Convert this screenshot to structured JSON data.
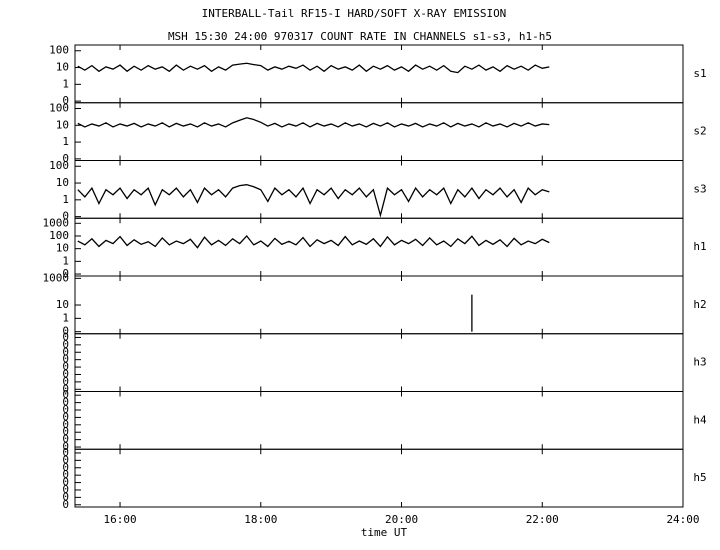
{
  "chart_data": [
    {
      "type": "line",
      "title": "INTERBALL-Tail RF15-I HARD/SOFT X-RAY EMISSION",
      "subtitle": "MSH 15:30 24:00 970317  COUNT RATE IN CHANNELS s1-s3, h1-h5",
      "name": "s1",
      "log": true,
      "ylim": [
        0.08,
        220
      ],
      "yticks": [
        100,
        10,
        1,
        {
          "value": 0.1,
          "label": "0"
        }
      ],
      "color": "#000000",
      "x": [
        15.4,
        15.5,
        15.6,
        15.7,
        15.8,
        15.9,
        16.0,
        16.1,
        16.2,
        16.3,
        16.4,
        16.5,
        16.6,
        16.7,
        16.8,
        16.9,
        17.0,
        17.1,
        17.2,
        17.3,
        17.4,
        17.5,
        17.6,
        17.7,
        17.8,
        17.9,
        18.0,
        18.1,
        18.2,
        18.3,
        18.4,
        18.5,
        18.6,
        18.7,
        18.8,
        18.9,
        19.0,
        19.1,
        19.2,
        19.3,
        19.4,
        19.5,
        19.6,
        19.7,
        19.8,
        19.9,
        20.0,
        20.1,
        20.2,
        20.3,
        20.4,
        20.5,
        20.6,
        20.7,
        20.8,
        20.9,
        21.0,
        21.1,
        21.2,
        21.3,
        21.4,
        21.5,
        21.6,
        21.7,
        21.8,
        21.9,
        22.0,
        22.1
      ],
      "values": [
        12,
        7,
        13,
        6,
        11,
        8,
        14,
        6,
        12,
        7,
        13,
        8,
        11,
        6,
        14,
        7,
        12,
        8,
        13,
        6,
        11,
        7,
        14,
        16,
        18,
        15,
        13,
        7,
        11,
        8,
        12,
        9,
        14,
        7,
        12,
        6,
        13,
        8,
        11,
        7,
        14,
        6,
        12,
        8,
        13,
        7,
        11,
        6,
        14,
        8,
        12,
        7,
        13,
        6,
        5,
        12,
        8,
        14,
        7,
        11,
        6,
        13,
        8,
        12,
        7,
        14,
        9,
        11
      ]
    },
    {
      "type": "line",
      "name": "s2",
      "log": true,
      "ylim": [
        0.08,
        220
      ],
      "yticks": [
        100,
        10,
        1,
        {
          "value": 0.1,
          "label": "0"
        }
      ],
      "color": "#000000",
      "x": [
        15.4,
        15.5,
        15.6,
        15.7,
        15.8,
        15.9,
        16.0,
        16.1,
        16.2,
        16.3,
        16.4,
        16.5,
        16.6,
        16.7,
        16.8,
        16.9,
        17.0,
        17.1,
        17.2,
        17.3,
        17.4,
        17.5,
        17.6,
        17.7,
        17.8,
        17.9,
        18.0,
        18.1,
        18.2,
        18.3,
        18.4,
        18.5,
        18.6,
        18.7,
        18.8,
        18.9,
        19.0,
        19.1,
        19.2,
        19.3,
        19.4,
        19.5,
        19.6,
        19.7,
        19.8,
        19.9,
        20.0,
        20.1,
        20.2,
        20.3,
        20.4,
        20.5,
        20.6,
        20.7,
        20.8,
        20.9,
        21.0,
        21.1,
        21.2,
        21.3,
        21.4,
        21.5,
        21.6,
        21.7,
        21.8,
        21.9,
        22.0,
        22.1
      ],
      "values": [
        13,
        8,
        12,
        9,
        14,
        8,
        12,
        9,
        13,
        8,
        12,
        9,
        14,
        8,
        13,
        9,
        12,
        8,
        14,
        9,
        12,
        8,
        14,
        20,
        28,
        22,
        15,
        9,
        13,
        8,
        12,
        9,
        14,
        8,
        13,
        9,
        12,
        8,
        14,
        9,
        12,
        8,
        13,
        9,
        14,
        8,
        12,
        9,
        13,
        8,
        12,
        9,
        14,
        8,
        13,
        9,
        12,
        8,
        14,
        9,
        12,
        8,
        13,
        9,
        14,
        9,
        12,
        11
      ]
    },
    {
      "type": "line",
      "name": "s3",
      "log": true,
      "ylim": [
        0.08,
        220
      ],
      "yticks": [
        100,
        10,
        1,
        {
          "value": 0.1,
          "label": "0"
        }
      ],
      "color": "#000000",
      "x": [
        15.4,
        15.5,
        15.6,
        15.7,
        15.8,
        15.9,
        16.0,
        16.1,
        16.2,
        16.3,
        16.4,
        16.5,
        16.6,
        16.7,
        16.8,
        16.9,
        17.0,
        17.1,
        17.2,
        17.3,
        17.4,
        17.5,
        17.6,
        17.7,
        17.8,
        17.9,
        18.0,
        18.1,
        18.2,
        18.3,
        18.4,
        18.5,
        18.6,
        18.7,
        18.8,
        18.9,
        19.0,
        19.1,
        19.2,
        19.3,
        19.4,
        19.5,
        19.6,
        19.7,
        19.8,
        19.9,
        20.0,
        20.1,
        20.2,
        20.3,
        20.4,
        20.5,
        20.6,
        20.7,
        20.8,
        20.9,
        21.0,
        21.1,
        21.2,
        21.3,
        21.4,
        21.5,
        21.6,
        21.7,
        21.8,
        21.9,
        22.0,
        22.1
      ],
      "values": [
        4,
        1.5,
        5,
        0.6,
        4,
        2,
        5,
        1.2,
        4,
        2,
        5,
        0.5,
        4,
        2,
        5,
        1.5,
        4,
        0.7,
        5,
        2,
        4,
        1.5,
        5,
        7,
        8,
        6,
        4,
        0.8,
        5,
        2,
        4,
        1.5,
        5,
        0.6,
        4,
        2,
        5,
        1.2,
        4,
        2,
        5,
        1.5,
        4,
        0.12,
        5,
        2,
        4,
        0.8,
        5,
        1.5,
        4,
        2,
        5,
        0.6,
        4,
        1.5,
        5,
        1.2,
        4,
        2,
        5,
        1.5,
        4,
        0.7,
        5,
        2,
        4,
        3
      ]
    },
    {
      "type": "line",
      "name": "h1",
      "log": true,
      "ylim": [
        0.07,
        2500
      ],
      "yticks": [
        1000,
        100,
        10,
        1,
        {
          "value": 0.1,
          "label": "0"
        }
      ],
      "color": "#000000",
      "x": [
        15.4,
        15.5,
        15.6,
        15.7,
        15.8,
        15.9,
        16.0,
        16.1,
        16.2,
        16.3,
        16.4,
        16.5,
        16.6,
        16.7,
        16.8,
        16.9,
        17.0,
        17.1,
        17.2,
        17.3,
        17.4,
        17.5,
        17.6,
        17.7,
        17.8,
        17.9,
        18.0,
        18.1,
        18.2,
        18.3,
        18.4,
        18.5,
        18.6,
        18.7,
        18.8,
        18.9,
        19.0,
        19.1,
        19.2,
        19.3,
        19.4,
        19.5,
        19.6,
        19.7,
        19.8,
        19.9,
        20.0,
        20.1,
        20.2,
        20.3,
        20.4,
        20.5,
        20.6,
        20.7,
        20.8,
        20.9,
        21.0,
        21.1,
        21.2,
        21.3,
        21.4,
        21.5,
        21.6,
        21.7,
        21.8,
        21.9,
        22.0,
        22.1
      ],
      "values": [
        40,
        20,
        60,
        15,
        45,
        25,
        90,
        18,
        50,
        22,
        35,
        15,
        70,
        20,
        40,
        25,
        55,
        12,
        80,
        20,
        45,
        18,
        60,
        25,
        100,
        20,
        40,
        15,
        65,
        22,
        38,
        20,
        75,
        15,
        50,
        25,
        45,
        18,
        90,
        20,
        40,
        22,
        60,
        15,
        85,
        20,
        45,
        25,
        55,
        18,
        70,
        20,
        40,
        15,
        60,
        25,
        95,
        18,
        45,
        22,
        50,
        15,
        65,
        20,
        40,
        25,
        55,
        30
      ]
    },
    {
      "type": "line",
      "name": "h2",
      "log": true,
      "ylim": [
        0.07,
        1500
      ],
      "yticks": [
        1000,
        10,
        1,
        {
          "value": 0.1,
          "label": "0"
        }
      ],
      "color": "#000000",
      "x": [
        21.0,
        21.0
      ],
      "values": [
        0.1,
        60
      ]
    },
    {
      "type": "line",
      "name": "h3",
      "log": false,
      "ylim": [
        -0.03,
        0.75
      ],
      "yticks": [
        {
          "value": 0,
          "label": "0"
        },
        {
          "value": 0.1,
          "label": "0"
        },
        {
          "value": 0.2,
          "label": "0"
        },
        {
          "value": 0.3,
          "label": "0"
        },
        {
          "value": 0.4,
          "label": "0"
        },
        {
          "value": 0.5,
          "label": "0"
        },
        {
          "value": 0.6,
          "label": "0"
        },
        {
          "value": 0.7,
          "label": "0"
        }
      ]
    },
    {
      "type": "line",
      "name": "h4",
      "log": false,
      "ylim": [
        -0.03,
        0.75
      ],
      "yticks": [
        {
          "value": 0,
          "label": "0"
        },
        {
          "value": 0.1,
          "label": "0"
        },
        {
          "value": 0.2,
          "label": "0"
        },
        {
          "value": 0.3,
          "label": "0"
        },
        {
          "value": 0.4,
          "label": "0"
        },
        {
          "value": 0.5,
          "label": "0"
        },
        {
          "value": 0.6,
          "label": "0"
        },
        {
          "value": 0.7,
          "label": "0"
        }
      ]
    },
    {
      "type": "line",
      "name": "h5",
      "log": false,
      "ylim": [
        -0.03,
        0.75
      ],
      "yticks": [
        {
          "value": 0,
          "label": "0"
        },
        {
          "value": 0.1,
          "label": "0"
        },
        {
          "value": 0.2,
          "label": "0"
        },
        {
          "value": 0.3,
          "label": "0"
        },
        {
          "value": 0.4,
          "label": "0"
        },
        {
          "value": 0.5,
          "label": "0"
        },
        {
          "value": 0.6,
          "label": "0"
        },
        {
          "value": 0.7,
          "label": "0"
        }
      ],
      "xlabel": "time UT",
      "xlim": [
        15.36,
        24
      ],
      "xticks": [
        {
          "value": 16,
          "label": "16:00"
        },
        {
          "value": 18,
          "label": "18:00"
        },
        {
          "value": 20,
          "label": "20:00"
        },
        {
          "value": 22,
          "label": "22:00"
        },
        {
          "value": 24,
          "label": "24:00"
        }
      ]
    }
  ]
}
